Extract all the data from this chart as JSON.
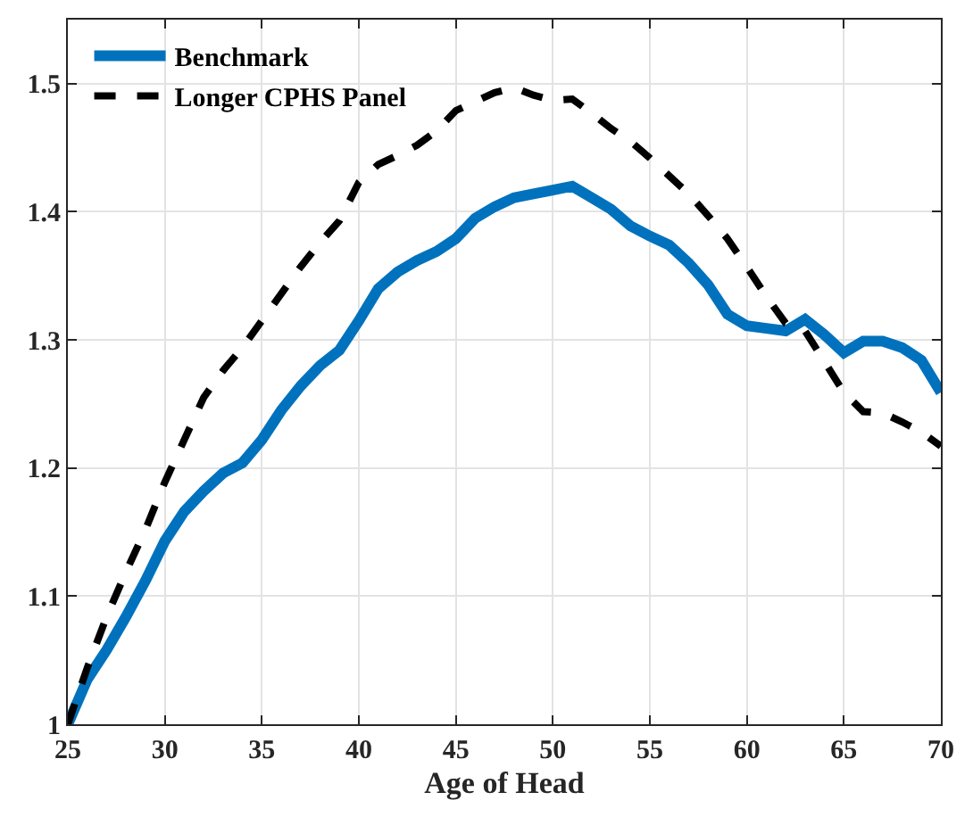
{
  "chart_data": {
    "type": "line",
    "xlabel": "Age of Head",
    "x": [
      25,
      26,
      27,
      28,
      29,
      30,
      31,
      32,
      33,
      34,
      35,
      36,
      37,
      38,
      39,
      40,
      41,
      42,
      43,
      44,
      45,
      46,
      47,
      48,
      49,
      50,
      51,
      52,
      53,
      54,
      55,
      56,
      57,
      58,
      59,
      60,
      61,
      62,
      63,
      64,
      65,
      66,
      67,
      68,
      69,
      70
    ],
    "series": [
      {
        "name": "Benchmark",
        "color": "#0072bd",
        "line_style": "solid",
        "values": [
          1.0,
          1.035,
          1.058,
          1.084,
          1.112,
          1.143,
          1.166,
          1.182,
          1.196,
          1.204,
          1.222,
          1.245,
          1.264,
          1.28,
          1.292,
          1.315,
          1.34,
          1.353,
          1.362,
          1.369,
          1.379,
          1.395,
          1.404,
          1.411,
          1.414,
          1.417,
          1.42,
          1.411,
          1.402,
          1.389,
          1.381,
          1.374,
          1.36,
          1.343,
          1.32,
          1.311,
          1.309,
          1.307,
          1.316,
          1.304,
          1.29,
          1.299,
          1.299,
          1.294,
          1.284,
          1.259
        ]
      },
      {
        "name": "Longer CPHS Panel",
        "color": "#000000",
        "line_style": "dashed",
        "values": [
          1.0,
          1.044,
          1.084,
          1.119,
          1.152,
          1.189,
          1.222,
          1.255,
          1.276,
          1.294,
          1.315,
          1.336,
          1.357,
          1.376,
          1.393,
          1.423,
          1.437,
          1.444,
          1.452,
          1.463,
          1.479,
          1.486,
          1.493,
          1.497,
          1.491,
          1.487,
          1.488,
          1.477,
          1.465,
          1.455,
          1.442,
          1.428,
          1.414,
          1.397,
          1.379,
          1.357,
          1.334,
          1.313,
          1.307,
          1.283,
          1.259,
          1.244,
          1.243,
          1.236,
          1.228,
          1.217
        ]
      }
    ],
    "xlim": [
      25,
      70
    ],
    "xticks": [
      25,
      30,
      35,
      40,
      45,
      50,
      55,
      60,
      65,
      70
    ],
    "ylim": [
      1,
      1.55
    ],
    "yticks": [
      1,
      1.1,
      1.2,
      1.3,
      1.4,
      1.5
    ],
    "grid": true,
    "legend": "top left",
    "marker": "none"
  }
}
